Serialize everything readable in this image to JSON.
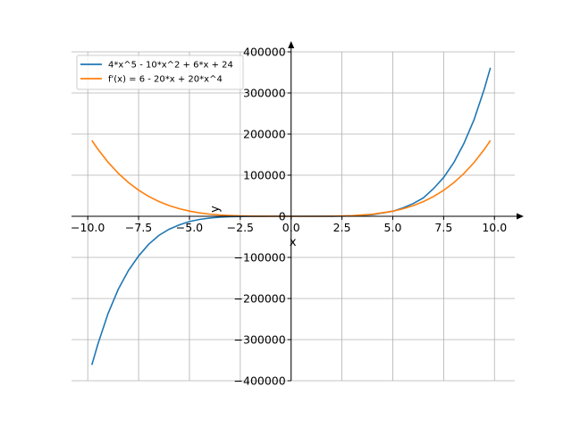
{
  "chart_data": {
    "type": "line",
    "title": "",
    "xlabel": "x",
    "ylabel": "y",
    "xlim": [
      -10.8,
      11.0
    ],
    "ylim": [
      -400000,
      400000
    ],
    "grid": true,
    "legend_position": "top-left",
    "x_ticks": [
      -10.0,
      -7.5,
      -5.0,
      -2.5,
      0.0,
      2.5,
      5.0,
      7.5,
      10.0
    ],
    "x_tick_labels": [
      "−10.0",
      "−7.5",
      "−5.0",
      "−2.5",
      "0.0",
      "2.5",
      "5.0",
      "7.5",
      "10.0"
    ],
    "y_ticks": [
      -400000,
      -300000,
      -200000,
      -100000,
      0,
      100000,
      200000,
      300000,
      400000
    ],
    "y_tick_labels": [
      "−400000",
      "−300000",
      "−200000",
      "−100000",
      "0",
      "100000",
      "200000",
      "300000",
      "400000"
    ],
    "series": [
      {
        "name": "4*x^5 - 10*x^2 + 6*x + 24",
        "color": "#1f77b4",
        "x": [
          -9.8,
          -9.5,
          -9.0,
          -8.5,
          -8.0,
          -7.5,
          -7.0,
          -6.5,
          -6.0,
          -5.5,
          -5.0,
          -4.5,
          -4.0,
          -3.5,
          -3.0,
          -2.5,
          -2.0,
          -1.5,
          -1.0,
          0.0,
          1.0,
          2.0,
          3.0,
          4.0,
          5.0,
          5.5,
          6.0,
          6.5,
          7.0,
          7.5,
          8.0,
          8.5,
          9.0,
          9.5,
          9.8
        ],
        "y": [
          -361587,
          -310546,
          -236255,
          -177504,
          -131760,
          -96574,
          -67772,
          -46434,
          -31480,
          -20989,
          -12756,
          -7623,
          -4232,
          -2197,
          -1014,
          -431,
          -158,
          -47,
          -16,
          24,
          24,
          104,
          900,
          3960,
          12304,
          20316,
          30780,
          44548,
          67122,
          94348,
          130456,
          177440,
          235410,
          309599,
          361270
        ]
      },
      {
        "name": "f'(x) = 6 - 20*x + 20*x^4",
        "color": "#ff7f0e",
        "x": [
          -9.8,
          -9.5,
          -9.0,
          -8.5,
          -8.0,
          -7.5,
          -7.0,
          -6.5,
          -6.0,
          -5.5,
          -5.0,
          -4.5,
          -4.0,
          -3.5,
          -3.0,
          -2.5,
          -2.0,
          -1.5,
          -1.0,
          0.0,
          1.0,
          2.0,
          3.0,
          4.0,
          5.0,
          5.5,
          6.0,
          6.5,
          7.0,
          7.5,
          8.0,
          8.5,
          9.0,
          9.5,
          9.8
        ],
        "y": [
          184676,
          163084,
          131406,
          104565,
          82086,
          63437,
          48166,
          35836,
          26046,
          18414,
          12606,
          8299,
          5206,
          3077,
          1686,
          837,
          366,
          137,
          46,
          6,
          6,
          286,
          1566,
          5046,
          12406,
          18194,
          25806,
          35566,
          47886,
          63137,
          81766,
          104221,
          130986,
          162686,
          184288
        ]
      }
    ]
  }
}
